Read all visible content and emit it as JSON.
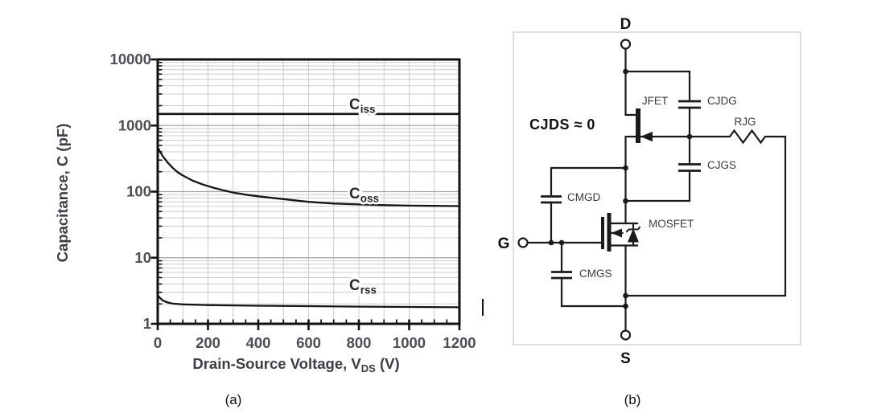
{
  "panels": {
    "a": {
      "caption": "(a)"
    },
    "b": {
      "caption": "(b)"
    }
  },
  "chart_data": {
    "type": "line",
    "title": "",
    "x_axis": {
      "label_main": "Drain-Source Voltage, V",
      "label_sub": "DS",
      "label_tail": " (V)",
      "scale": "linear",
      "min": 0,
      "max": 1200,
      "major_ticks": [
        0,
        200,
        400,
        600,
        800,
        1000,
        1200
      ],
      "tick_labels": [
        "0",
        "200",
        "400",
        "600",
        "800",
        "1000",
        "1200"
      ],
      "minor_tick_step": 50
    },
    "y_axis": {
      "label": "Capacitance, C (pF)",
      "scale": "log",
      "min": 1,
      "max": 10000,
      "major_ticks": [
        1,
        10,
        100,
        1000,
        10000
      ],
      "tick_labels": [
        "1",
        "10",
        "100",
        "1000",
        "10000"
      ]
    },
    "grid": {
      "vertical_step": 100,
      "log_minor": true
    },
    "legend_position": "inline-labels",
    "series": [
      {
        "name": "Ciss",
        "label_main": "C",
        "label_sub": "iss",
        "points": [
          [
            0,
            1500
          ],
          [
            1200,
            1500
          ]
        ]
      },
      {
        "name": "Coss",
        "label_main": "C",
        "label_sub": "oss",
        "points": [
          [
            0,
            470
          ],
          [
            10,
            400
          ],
          [
            20,
            345
          ],
          [
            40,
            275
          ],
          [
            60,
            228
          ],
          [
            80,
            196
          ],
          [
            100,
            175
          ],
          [
            140,
            146
          ],
          [
            180,
            128
          ],
          [
            220,
            115
          ],
          [
            260,
            105
          ],
          [
            300,
            97
          ],
          [
            350,
            90
          ],
          [
            400,
            85
          ],
          [
            500,
            77
          ],
          [
            600,
            70
          ],
          [
            700,
            66
          ],
          [
            800,
            64
          ],
          [
            900,
            62.5
          ],
          [
            1000,
            61.5
          ],
          [
            1100,
            61
          ],
          [
            1200,
            60.5
          ]
        ]
      },
      {
        "name": "Crss",
        "label_main": "C",
        "label_sub": "rss",
        "points": [
          [
            0,
            2.7
          ],
          [
            10,
            2.45
          ],
          [
            20,
            2.25
          ],
          [
            40,
            2.1
          ],
          [
            60,
            2.02
          ],
          [
            100,
            1.97
          ],
          [
            200,
            1.92
          ],
          [
            300,
            1.9
          ],
          [
            400,
            1.88
          ],
          [
            600,
            1.85
          ],
          [
            800,
            1.82
          ],
          [
            1000,
            1.8
          ],
          [
            1200,
            1.78
          ]
        ]
      }
    ]
  },
  "circuit": {
    "terminals": {
      "drain": "D",
      "gate": "G",
      "source": "S"
    },
    "note": "CJDS ≈ 0",
    "labels": {
      "jfet": "JFET",
      "cjdg": "CJDG",
      "rjg": "RJG",
      "cjgs": "CJGS",
      "cmgd": "CMGD",
      "mosfet": "MOSFET",
      "cmgs": "CMGS"
    }
  },
  "colors": {
    "curve": "#151515",
    "grid_minor": "#cccccc",
    "grid_major": "#a3a3a3",
    "frame": "#121212",
    "tick_label": "#4d4d57",
    "axis_title": "#3d3d46",
    "curve_label": "#28282c",
    "circuit_line": "#1a1a1a",
    "circuit_label": "#3b3b3b",
    "panel_border": "#cbcbcb"
  }
}
